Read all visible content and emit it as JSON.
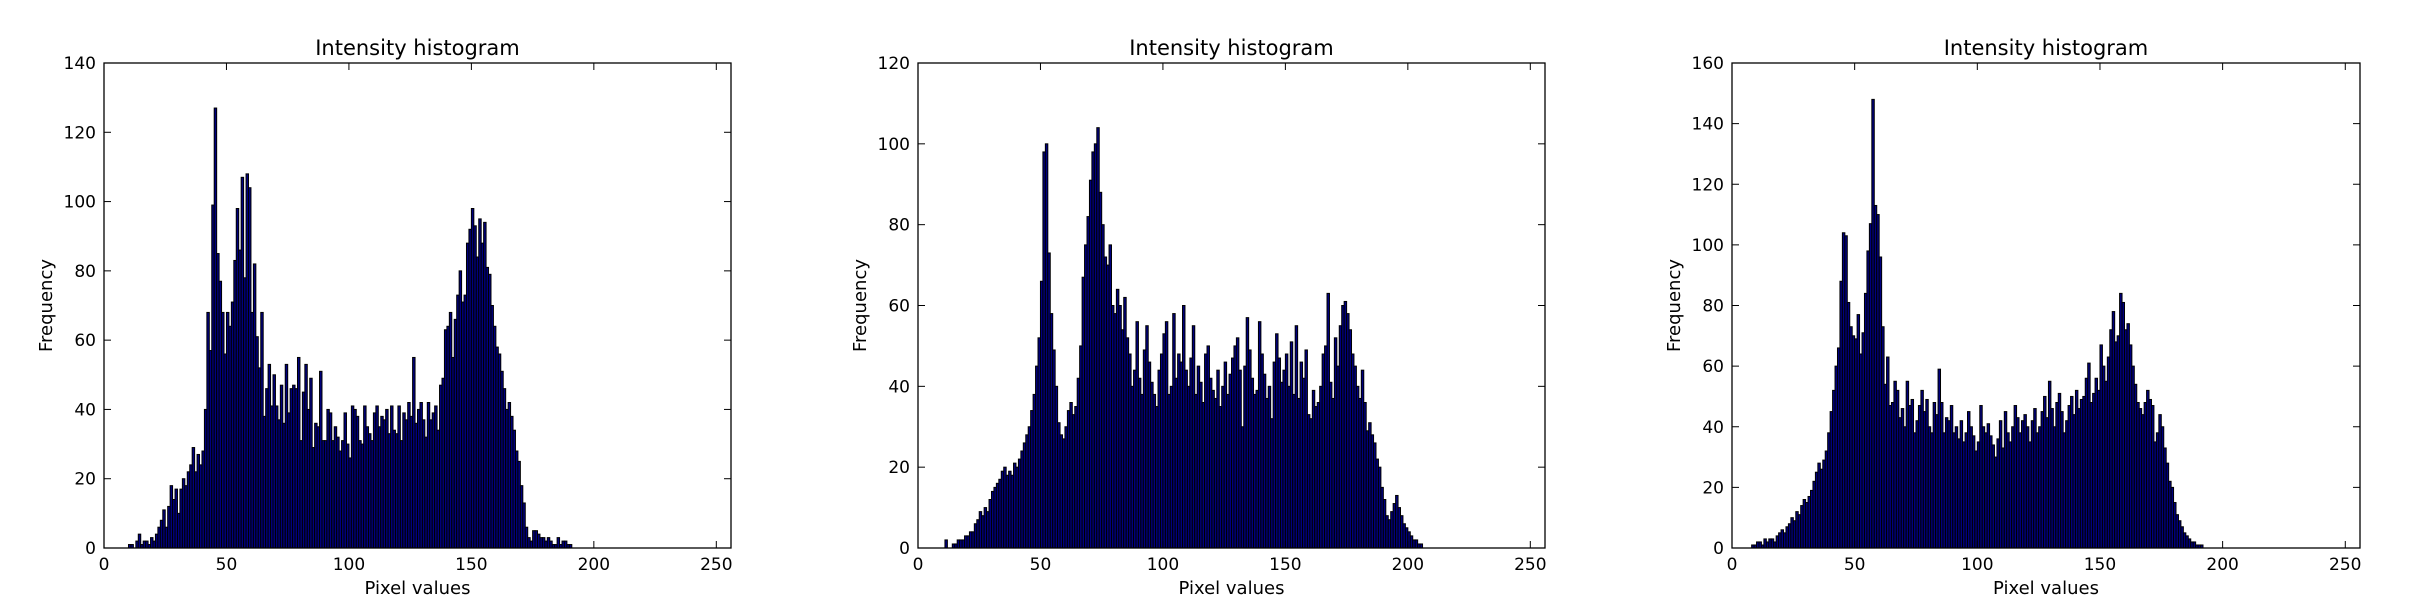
{
  "colors": {
    "bar_fill": "#00007f",
    "bar_edge": "#000000",
    "axes": "#000000",
    "background": "#ffffff"
  },
  "chart_data": [
    {
      "type": "bar",
      "title": "Intensity histogram",
      "xlabel": "Pixel values",
      "ylabel": "Frequency",
      "xlim": [
        0,
        256
      ],
      "ylim": [
        0,
        140
      ],
      "xticks": [
        0,
        50,
        100,
        150,
        200,
        250
      ],
      "yticks": [
        0,
        20,
        40,
        60,
        80,
        100,
        120,
        140
      ],
      "grid": false,
      "bins": 256,
      "x_start": 0,
      "values": [
        0,
        0,
        0,
        0,
        0,
        0,
        0,
        0,
        0,
        0,
        1,
        1,
        0,
        2,
        4,
        1,
        2,
        2,
        1,
        3,
        2,
        4,
        6,
        8,
        11,
        6,
        12,
        18,
        14,
        17,
        10,
        17,
        20,
        18,
        22,
        24,
        29,
        22,
        27,
        24,
        28,
        40,
        68,
        57,
        99,
        127,
        85,
        77,
        68,
        56,
        68,
        64,
        71,
        83,
        98,
        86,
        107,
        78,
        108,
        104,
        68,
        82,
        61,
        52,
        68,
        38,
        46,
        53,
        41,
        50,
        41,
        37,
        47,
        36,
        53,
        39,
        46,
        47,
        46,
        55,
        31,
        45,
        53,
        40,
        49,
        29,
        36,
        35,
        51,
        31,
        31,
        40,
        39,
        31,
        35,
        32,
        28,
        31,
        39,
        30,
        26,
        41,
        40,
        38,
        31,
        30,
        41,
        35,
        33,
        31,
        39,
        41,
        35,
        38,
        37,
        40,
        33,
        41,
        34,
        33,
        41,
        31,
        39,
        37,
        42,
        38,
        55,
        36,
        40,
        42,
        37,
        32,
        42,
        37,
        39,
        41,
        34,
        47,
        49,
        63,
        64,
        68,
        55,
        66,
        73,
        80,
        71,
        73,
        88,
        92,
        98,
        93,
        84,
        95,
        88,
        94,
        81,
        79,
        70,
        64,
        58,
        56,
        51,
        46,
        40,
        42,
        38,
        34,
        28,
        25,
        18,
        13,
        6,
        3,
        2,
        5,
        5,
        4,
        3,
        3,
        2,
        3,
        2,
        1,
        1,
        3,
        1,
        2,
        2,
        1,
        1,
        0,
        0,
        0,
        0,
        0,
        0,
        0,
        0,
        0,
        0,
        0,
        0,
        0,
        0,
        0,
        0,
        0,
        0,
        0,
        0,
        0,
        0,
        0,
        0,
        0,
        0,
        0,
        0,
        0,
        0,
        0,
        0,
        0,
        0,
        0,
        0,
        0,
        0,
        0,
        0,
        0,
        0,
        0,
        0,
        0,
        0,
        0,
        0,
        0,
        0,
        0,
        0,
        0,
        0,
        0,
        0,
        0,
        0,
        0,
        0,
        0,
        0,
        0,
        0,
        0,
        0,
        0,
        0,
        0,
        0,
        0
      ]
    },
    {
      "type": "bar",
      "title": "Intensity histogram",
      "xlabel": "Pixel values",
      "ylabel": "Frequency",
      "xlim": [
        0,
        256
      ],
      "ylim": [
        0,
        120
      ],
      "xticks": [
        0,
        50,
        100,
        150,
        200,
        250
      ],
      "yticks": [
        0,
        20,
        40,
        60,
        80,
        100,
        120
      ],
      "grid": false,
      "bins": 256,
      "x_start": 0,
      "values": [
        0,
        0,
        0,
        0,
        0,
        0,
        0,
        0,
        0,
        0,
        0,
        2,
        0,
        0,
        1,
        1,
        2,
        2,
        2,
        3,
        3,
        4,
        4,
        6,
        7,
        9,
        8,
        10,
        9,
        12,
        14,
        15,
        16,
        17,
        19,
        20,
        18,
        19,
        18,
        21,
        20,
        22,
        24,
        26,
        28,
        30,
        34,
        38,
        45,
        52,
        66,
        98,
        100,
        73,
        58,
        49,
        40,
        31,
        28,
        27,
        30,
        34,
        36,
        33,
        35,
        42,
        50,
        67,
        75,
        82,
        91,
        98,
        100,
        104,
        88,
        80,
        72,
        70,
        75,
        60,
        58,
        64,
        60,
        54,
        62,
        52,
        48,
        40,
        44,
        56,
        42,
        38,
        49,
        55,
        46,
        41,
        38,
        35,
        44,
        48,
        53,
        56,
        38,
        40,
        58,
        42,
        48,
        46,
        60,
        44,
        40,
        47,
        55,
        38,
        45,
        41,
        36,
        48,
        50,
        42,
        39,
        37,
        44,
        35,
        40,
        46,
        38,
        43,
        47,
        50,
        52,
        44,
        30,
        45,
        57,
        49,
        42,
        38,
        39,
        56,
        48,
        43,
        37,
        40,
        32,
        46,
        53,
        47,
        41,
        44,
        48,
        40,
        51,
        38,
        55,
        37,
        46,
        42,
        49,
        33,
        32,
        39,
        35,
        36,
        40,
        48,
        50,
        63,
        41,
        37,
        52,
        45,
        55,
        60,
        61,
        58,
        54,
        48,
        45,
        40,
        37,
        44,
        36,
        29,
        31,
        28,
        26,
        22,
        20,
        15,
        12,
        8,
        7,
        9,
        11,
        13,
        10,
        8,
        6,
        5,
        4,
        3,
        2,
        2,
        1,
        1,
        0,
        0,
        0,
        0,
        0,
        0,
        0,
        0,
        0,
        0,
        0,
        0,
        0,
        0,
        0,
        0,
        0,
        0,
        0,
        0,
        0,
        0,
        0,
        0,
        0,
        0,
        0,
        0,
        0,
        0,
        0,
        0,
        0,
        0,
        0,
        0,
        0,
        0,
        0,
        0,
        0,
        0,
        0,
        0,
        0,
        0,
        0,
        0,
        0,
        0,
        0
      ]
    },
    {
      "type": "bar",
      "title": "Intensity histogram",
      "xlabel": "Pixel values",
      "ylabel": "Frequency",
      "xlim": [
        0,
        256
      ],
      "ylim": [
        0,
        160
      ],
      "xticks": [
        0,
        50,
        100,
        150,
        200,
        250
      ],
      "yticks": [
        0,
        20,
        40,
        60,
        80,
        100,
        120,
        140,
        160
      ],
      "grid": false,
      "bins": 256,
      "x_start": 0,
      "values": [
        0,
        0,
        0,
        0,
        0,
        0,
        0,
        0,
        1,
        1,
        2,
        2,
        1,
        3,
        2,
        3,
        3,
        2,
        4,
        5,
        6,
        5,
        7,
        8,
        10,
        9,
        12,
        11,
        14,
        16,
        15,
        17,
        19,
        22,
        25,
        28,
        26,
        29,
        32,
        38,
        45,
        52,
        60,
        66,
        88,
        104,
        103,
        81,
        73,
        70,
        69,
        77,
        64,
        71,
        84,
        98,
        107,
        148,
        113,
        110,
        96,
        73,
        54,
        63,
        47,
        48,
        55,
        52,
        43,
        46,
        40,
        55,
        47,
        49,
        38,
        42,
        47,
        52,
        45,
        49,
        40,
        38,
        48,
        44,
        59,
        48,
        38,
        43,
        42,
        47,
        38,
        40,
        36,
        42,
        35,
        38,
        45,
        40,
        37,
        32,
        35,
        47,
        40,
        38,
        41,
        37,
        34,
        30,
        36,
        42,
        33,
        45,
        38,
        35,
        40,
        47,
        43,
        38,
        42,
        44,
        40,
        35,
        42,
        46,
        38,
        40,
        45,
        50,
        43,
        55,
        46,
        40,
        48,
        51,
        45,
        38,
        42,
        47,
        50,
        44,
        52,
        46,
        49,
        50,
        56,
        61,
        48,
        51,
        56,
        52,
        67,
        60,
        55,
        63,
        72,
        78,
        68,
        70,
        84,
        81,
        72,
        74,
        67,
        60,
        54,
        48,
        46,
        44,
        48,
        52,
        49,
        47,
        35,
        38,
        44,
        40,
        33,
        28,
        22,
        20,
        15,
        11,
        9,
        7,
        5,
        4,
        3,
        2,
        2,
        1,
        1,
        1,
        0,
        0,
        0,
        0,
        0,
        0,
        0,
        0,
        0,
        0,
        0,
        0,
        0,
        0,
        0,
        0,
        0,
        0,
        0,
        0,
        0,
        0,
        0,
        0,
        0,
        0,
        0,
        0,
        0,
        0,
        0,
        0,
        0,
        0,
        0,
        0,
        0,
        0,
        0,
        0,
        0,
        0,
        0,
        0,
        0,
        0,
        0,
        0,
        0,
        0,
        0,
        0,
        0,
        0,
        0,
        0,
        0,
        0,
        0,
        0,
        0,
        0,
        0,
        0,
        0,
        0,
        0,
        0,
        0
      ]
    }
  ]
}
